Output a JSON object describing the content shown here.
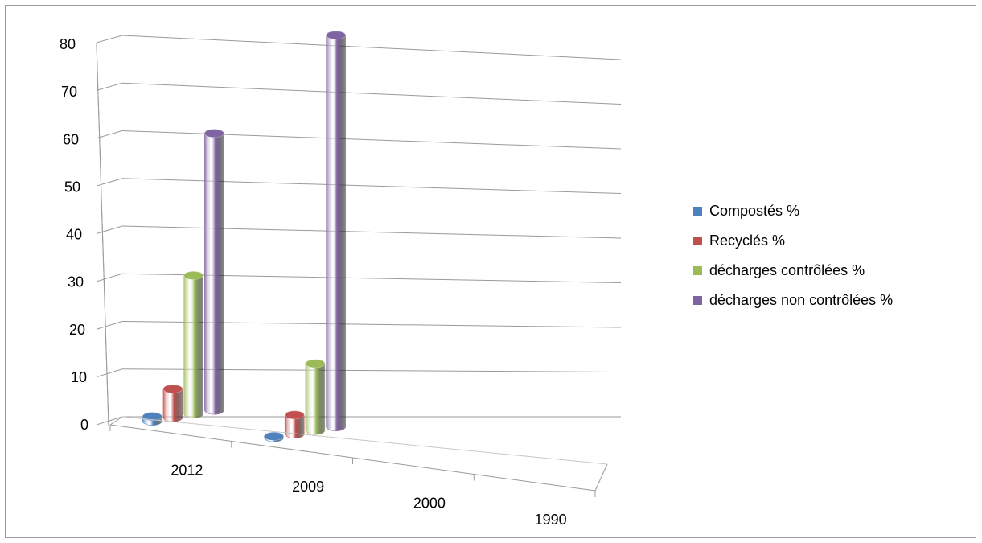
{
  "chart_data": {
    "type": "bar",
    "title": "",
    "xlabel": "",
    "ylabel": "",
    "categories": [
      "2012",
      "2009",
      "2000",
      "1990"
    ],
    "ylim": [
      0,
      80
    ],
    "y_ticks": [
      "0",
      "10",
      "20",
      "30",
      "40",
      "50",
      "60",
      "70",
      "80"
    ],
    "grid": true,
    "legend_position": "right",
    "series": [
      {
        "name": "Compostés %",
        "color": "#4f81bd",
        "values": [
          1,
          0.3,
          null,
          null
        ]
      },
      {
        "name": "Recyclés %",
        "color": "#c0504d",
        "values": [
          6,
          4,
          null,
          null
        ]
      },
      {
        "name": "décharges contrôlées %",
        "color": "#9bbb59",
        "values": [
          29,
          14,
          null,
          null
        ]
      },
      {
        "name": "décharges non contrôlées %",
        "color": "#8064a2",
        "values": [
          58,
          82,
          null,
          null
        ]
      }
    ]
  }
}
